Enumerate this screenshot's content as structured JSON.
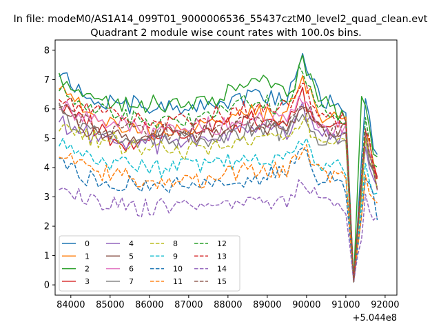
{
  "chart_data": {
    "type": "line",
    "suptitle": "In file: modeM0/AS1A14_099T01_9000006536_55437cztM0_level2_quad_clean.evt",
    "title": "Quadrant 2 module wise count rates with 100.0s bins.",
    "xlabel": "",
    "ylabel": "",
    "x_offset_label": "+5.044e8",
    "xlim": [
      83600,
      92300
    ],
    "ylim": [
      -0.35,
      8.35
    ],
    "x_ticks": [
      84000,
      85000,
      86000,
      87000,
      88000,
      89000,
      90000,
      91000,
      92000
    ],
    "x_tick_labels": [
      "84000",
      "85000",
      "86000",
      "87000",
      "88000",
      "89000",
      "90000",
      "91000",
      "92000"
    ],
    "y_ticks": [
      0,
      1,
      2,
      3,
      4,
      5,
      6,
      7,
      8
    ],
    "y_tick_labels": [
      "0",
      "1",
      "2",
      "3",
      "4",
      "5",
      "6",
      "7",
      "8"
    ],
    "legend_position": "lower-left",
    "legend_columns": 4,
    "x_start": 83700,
    "x_step": 100,
    "n_points": 82,
    "series": [
      {
        "name": "0",
        "color": "#1f77b4",
        "dash": "solid",
        "anchors": [
          [
            83700,
            7.35
          ],
          [
            84500,
            6.35
          ],
          [
            86000,
            6.0
          ],
          [
            87500,
            6.1
          ],
          [
            88600,
            6.5
          ],
          [
            89500,
            6.3
          ],
          [
            89900,
            7.9
          ],
          [
            90300,
            6.4
          ],
          [
            91000,
            6.0
          ],
          [
            91200,
            0.15
          ],
          [
            91500,
            6.1
          ],
          [
            91800,
            4.3
          ]
        ]
      },
      {
        "name": "1",
        "color": "#ff7f0e",
        "dash": "solid",
        "anchors": [
          [
            83700,
            6.8
          ],
          [
            84500,
            5.7
          ],
          [
            86000,
            5.2
          ],
          [
            87500,
            5.4
          ],
          [
            88600,
            5.9
          ],
          [
            89500,
            5.8
          ],
          [
            89900,
            7.2
          ],
          [
            90300,
            5.6
          ],
          [
            91000,
            5.6
          ],
          [
            91200,
            0.1
          ],
          [
            91500,
            5.4
          ],
          [
            91800,
            3.6
          ]
        ]
      },
      {
        "name": "2",
        "color": "#2ca02c",
        "dash": "solid",
        "anchors": [
          [
            83700,
            7.1
          ],
          [
            84500,
            6.4
          ],
          [
            86000,
            6.1
          ],
          [
            87500,
            6.3
          ],
          [
            88600,
            6.8
          ],
          [
            89000,
            7.1
          ],
          [
            89500,
            6.4
          ],
          [
            89900,
            7.6
          ],
          [
            90300,
            6.4
          ],
          [
            91000,
            5.6
          ],
          [
            91200,
            0.2
          ],
          [
            91400,
            6.5
          ],
          [
            91800,
            4.2
          ]
        ]
      },
      {
        "name": "3",
        "color": "#d62728",
        "dash": "solid",
        "anchors": [
          [
            83700,
            6.2
          ],
          [
            84500,
            5.5
          ],
          [
            85500,
            4.7
          ],
          [
            86500,
            5.2
          ],
          [
            87500,
            5.3
          ],
          [
            88600,
            5.6
          ],
          [
            89500,
            5.6
          ],
          [
            89900,
            6.6
          ],
          [
            90300,
            5.3
          ],
          [
            91000,
            5.3
          ],
          [
            91200,
            0.15
          ],
          [
            91500,
            5.2
          ],
          [
            91800,
            3.5
          ]
        ]
      },
      {
        "name": "4",
        "color": "#9467bd",
        "dash": "solid",
        "anchors": [
          [
            83700,
            5.6
          ],
          [
            84500,
            5.1
          ],
          [
            86000,
            4.8
          ],
          [
            87500,
            5.0
          ],
          [
            88600,
            5.3
          ],
          [
            89500,
            5.2
          ],
          [
            89900,
            6.1
          ],
          [
            90300,
            5.0
          ],
          [
            91000,
            5.0
          ],
          [
            91200,
            0.15
          ],
          [
            91500,
            4.9
          ],
          [
            91800,
            3.3
          ]
        ]
      },
      {
        "name": "5",
        "color": "#8c564b",
        "dash": "solid",
        "anchors": [
          [
            83700,
            6.0
          ],
          [
            84500,
            5.3
          ],
          [
            86000,
            5.0
          ],
          [
            87500,
            5.2
          ],
          [
            88600,
            5.5
          ],
          [
            89500,
            5.4
          ],
          [
            89900,
            6.3
          ],
          [
            90300,
            5.2
          ],
          [
            91000,
            5.2
          ],
          [
            91200,
            0.1
          ],
          [
            91500,
            5.0
          ],
          [
            91800,
            3.4
          ]
        ]
      },
      {
        "name": "6",
        "color": "#e377c2",
        "dash": "solid",
        "anchors": [
          [
            83700,
            6.1
          ],
          [
            84500,
            5.6
          ],
          [
            86000,
            5.3
          ],
          [
            87500,
            5.4
          ],
          [
            88600,
            5.7
          ],
          [
            89500,
            5.6
          ],
          [
            89900,
            6.4
          ],
          [
            90300,
            5.4
          ],
          [
            91000,
            5.3
          ],
          [
            91200,
            0.15
          ],
          [
            91500,
            5.2
          ],
          [
            91800,
            3.5
          ]
        ]
      },
      {
        "name": "7",
        "color": "#7f7f7f",
        "dash": "solid",
        "anchors": [
          [
            83700,
            5.9
          ],
          [
            84500,
            5.2
          ],
          [
            86000,
            4.9
          ],
          [
            87500,
            5.0
          ],
          [
            88600,
            5.3
          ],
          [
            89500,
            5.2
          ],
          [
            89900,
            6.0
          ],
          [
            90300,
            5.0
          ],
          [
            91000,
            4.9
          ],
          [
            91200,
            0.15
          ],
          [
            91500,
            4.8
          ],
          [
            91800,
            3.3
          ]
        ]
      },
      {
        "name": "8",
        "color": "#bcbd22",
        "dash": "dashed",
        "anchors": [
          [
            83700,
            5.5
          ],
          [
            84500,
            5.0
          ],
          [
            86000,
            4.6
          ],
          [
            87500,
            4.6
          ],
          [
            88600,
            5.0
          ],
          [
            89500,
            4.9
          ],
          [
            89900,
            5.8
          ],
          [
            90300,
            4.9
          ],
          [
            91000,
            4.8
          ],
          [
            91200,
            0.1
          ],
          [
            91500,
            4.8
          ],
          [
            91800,
            3.2
          ]
        ]
      },
      {
        "name": "9",
        "color": "#17becf",
        "dash": "dashed",
        "anchors": [
          [
            83700,
            4.7
          ],
          [
            84500,
            4.3
          ],
          [
            86000,
            4.0
          ],
          [
            87500,
            4.1
          ],
          [
            88600,
            4.3
          ],
          [
            89500,
            4.3
          ],
          [
            89900,
            5.1
          ],
          [
            90300,
            4.1
          ],
          [
            91000,
            4.0
          ],
          [
            91200,
            0.1
          ],
          [
            91500,
            4.0
          ],
          [
            91800,
            3.0
          ]
        ]
      },
      {
        "name": "10",
        "color": "#1f77b4",
        "dash": "dashed",
        "anchors": [
          [
            83700,
            4.3
          ],
          [
            84500,
            3.6
          ],
          [
            86000,
            3.3
          ],
          [
            87500,
            3.4
          ],
          [
            88600,
            3.7
          ],
          [
            89500,
            3.7
          ],
          [
            89900,
            4.7
          ],
          [
            90300,
            3.6
          ],
          [
            91000,
            3.4
          ],
          [
            91200,
            0.1
          ],
          [
            91500,
            3.5
          ],
          [
            91800,
            2.4
          ]
        ]
      },
      {
        "name": "11",
        "color": "#ff7f0e",
        "dash": "dashed",
        "anchors": [
          [
            83700,
            4.4
          ],
          [
            84500,
            3.9
          ],
          [
            86000,
            3.5
          ],
          [
            87500,
            3.6
          ],
          [
            88600,
            3.9
          ],
          [
            89500,
            3.9
          ],
          [
            89900,
            4.8
          ],
          [
            90300,
            3.8
          ],
          [
            91000,
            3.7
          ],
          [
            91200,
            0.1
          ],
          [
            91500,
            3.7
          ],
          [
            91800,
            2.6
          ]
        ]
      },
      {
        "name": "12",
        "color": "#2ca02c",
        "dash": "dashed",
        "anchors": [
          [
            83700,
            6.6
          ],
          [
            84500,
            6.0
          ],
          [
            86000,
            5.6
          ],
          [
            87500,
            5.8
          ],
          [
            88600,
            6.2
          ],
          [
            89500,
            6.0
          ],
          [
            89900,
            7.5
          ],
          [
            90300,
            6.0
          ],
          [
            91000,
            5.7
          ],
          [
            91200,
            0.15
          ],
          [
            91500,
            5.6
          ],
          [
            91800,
            3.8
          ]
        ]
      },
      {
        "name": "13",
        "color": "#d62728",
        "dash": "dashed",
        "anchors": [
          [
            83700,
            6.5
          ],
          [
            84500,
            5.9
          ],
          [
            86000,
            5.6
          ],
          [
            87500,
            5.8
          ],
          [
            88600,
            6.0
          ],
          [
            89500,
            6.1
          ],
          [
            89900,
            6.9
          ],
          [
            90300,
            5.9
          ],
          [
            91000,
            5.6
          ],
          [
            91200,
            0.15
          ],
          [
            91500,
            5.5
          ],
          [
            91800,
            3.7
          ]
        ]
      },
      {
        "name": "14",
        "color": "#9467bd",
        "dash": "dashed",
        "anchors": [
          [
            83700,
            3.5
          ],
          [
            84500,
            2.9
          ],
          [
            86000,
            2.6
          ],
          [
            87500,
            2.7
          ],
          [
            88600,
            2.9
          ],
          [
            89500,
            2.9
          ],
          [
            89900,
            3.6
          ],
          [
            90300,
            2.9
          ],
          [
            91000,
            2.6
          ],
          [
            91200,
            0.1
          ],
          [
            91500,
            2.8
          ],
          [
            91800,
            2.3
          ]
        ]
      },
      {
        "name": "15",
        "color": "#8c564b",
        "dash": "dashed",
        "anchors": [
          [
            83700,
            6.3
          ],
          [
            84500,
            5.4
          ],
          [
            86000,
            5.1
          ],
          [
            87500,
            5.3
          ],
          [
            88600,
            5.6
          ],
          [
            89500,
            5.5
          ],
          [
            89900,
            6.3
          ],
          [
            90300,
            5.3
          ],
          [
            91000,
            5.1
          ],
          [
            91200,
            0.1
          ],
          [
            91500,
            5.1
          ],
          [
            91800,
            3.4
          ]
        ]
      }
    ]
  }
}
